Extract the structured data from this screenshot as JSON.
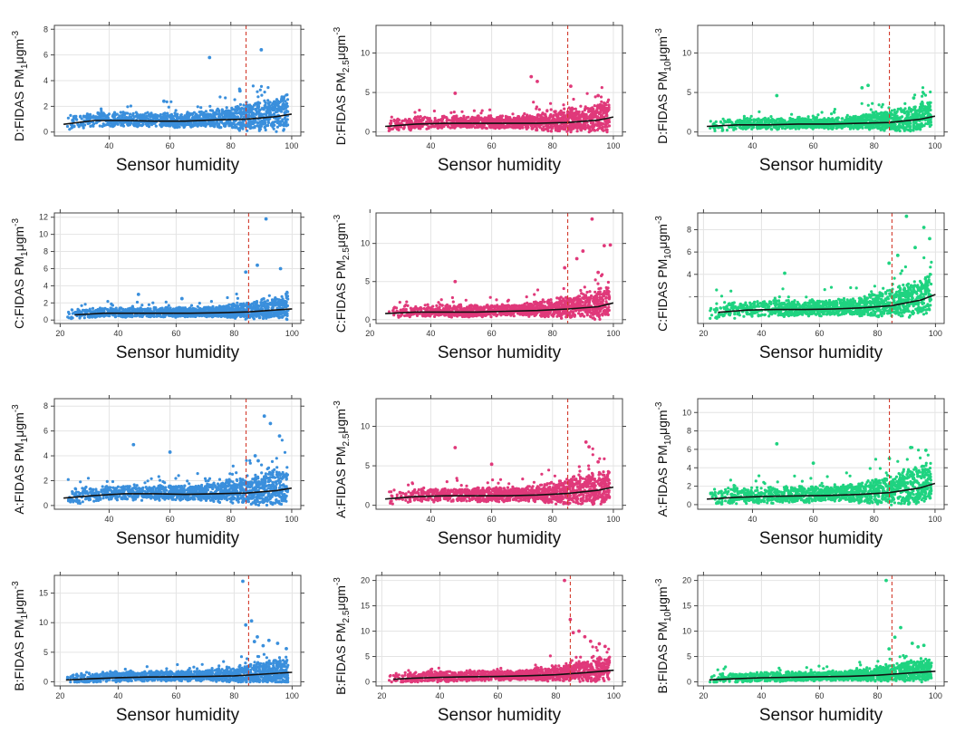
{
  "figure": {
    "rows": [
      "D",
      "C",
      "A",
      "B"
    ],
    "columns": [
      "PM1",
      "PM2.5",
      "PM10"
    ]
  },
  "chart_data": [
    {
      "type": "scatter",
      "sensor": "D",
      "pm": "PM1",
      "ylabel_prefix": "D:FIDAS PM",
      "ylabel_sub": "1",
      "ylabel_unit": "μgm",
      "ylabel_sup": "-3",
      "xlabel": "Sensor humidity",
      "color": "#3a8fdc",
      "xlim": [
        22,
        103
      ],
      "ylim": [
        -0.3,
        8.3
      ],
      "xticks": [
        40,
        60,
        80,
        100
      ],
      "yticks": [
        0,
        2,
        4,
        6,
        8
      ],
      "threshold_x": 85,
      "base_mean": 1.3,
      "spread": 1.4,
      "outliers": [
        [
          73,
          5.8
        ],
        [
          90,
          6.4
        ],
        [
          58,
          2.4
        ],
        [
          83,
          3.2
        ]
      ],
      "trend": [
        [
          25,
          0.6
        ],
        [
          35,
          0.9
        ],
        [
          45,
          0.9
        ],
        [
          55,
          0.85
        ],
        [
          65,
          0.85
        ],
        [
          75,
          0.95
        ],
        [
          85,
          1.0
        ],
        [
          95,
          1.2
        ],
        [
          100,
          1.4
        ]
      ]
    },
    {
      "type": "scatter",
      "sensor": "D",
      "pm": "PM2.5",
      "ylabel_prefix": "D:FIDAS PM",
      "ylabel_sub": "2.5",
      "ylabel_unit": "μgm",
      "ylabel_sup": "-3",
      "xlabel": "Sensor humidity",
      "color": "#e0397a",
      "xlim": [
        22,
        103
      ],
      "ylim": [
        -0.5,
        13.5
      ],
      "xticks": [
        40,
        60,
        80,
        100
      ],
      "yticks": [
        0,
        5,
        10
      ],
      "threshold_x": 85,
      "base_mean": 1.6,
      "spread": 2.0,
      "outliers": [
        [
          48,
          4.9
        ],
        [
          73,
          7.0
        ],
        [
          75,
          6.4
        ],
        [
          86,
          5.8
        ],
        [
          95,
          4.6
        ]
      ],
      "trend": [
        [
          25,
          0.7
        ],
        [
          35,
          1.0
        ],
        [
          45,
          1.1
        ],
        [
          55,
          1.1
        ],
        [
          65,
          1.1
        ],
        [
          75,
          1.1
        ],
        [
          85,
          1.2
        ],
        [
          95,
          1.5
        ],
        [
          100,
          1.9
        ]
      ]
    },
    {
      "type": "scatter",
      "sensor": "D",
      "pm": "PM10",
      "ylabel_prefix": "D:FIDAS PM",
      "ylabel_sub": "10",
      "ylabel_unit": "μgm",
      "ylabel_sup": "-3",
      "xlabel": "Sensor humidity",
      "color": "#1fd380",
      "xlim": [
        22,
        103
      ],
      "ylim": [
        -0.5,
        13.5
      ],
      "xticks": [
        40,
        60,
        80,
        100
      ],
      "yticks": [
        0,
        5,
        10
      ],
      "threshold_x": 85,
      "base_mean": 1.5,
      "spread": 1.8,
      "outliers": [
        [
          48,
          4.6
        ],
        [
          76,
          5.6
        ],
        [
          78,
          5.9
        ],
        [
          93,
          4.3
        ]
      ],
      "trend": [
        [
          25,
          0.7
        ],
        [
          35,
          0.9
        ],
        [
          45,
          0.9
        ],
        [
          55,
          1.0
        ],
        [
          65,
          1.0
        ],
        [
          75,
          1.1
        ],
        [
          85,
          1.2
        ],
        [
          95,
          1.6
        ],
        [
          100,
          2.0
        ]
      ]
    },
    {
      "type": "scatter",
      "sensor": "C",
      "pm": "PM1",
      "ylabel_prefix": "C:FIDAS PM",
      "ylabel_sub": "1",
      "ylabel_unit": "μgm",
      "ylabel_sup": "-3",
      "xlabel": "Sensor humidity",
      "color": "#3a8fdc",
      "xlim": [
        18,
        103
      ],
      "ylim": [
        -0.4,
        12.5
      ],
      "xticks": [
        20,
        40,
        60,
        80,
        100
      ],
      "yticks": [
        0,
        2,
        4,
        6,
        8,
        10,
        12
      ],
      "threshold_x": 85,
      "base_mean": 1.0,
      "spread": 1.4,
      "outliers": [
        [
          91,
          11.8
        ],
        [
          88,
          6.4
        ],
        [
          96,
          6.0
        ],
        [
          84,
          5.6
        ],
        [
          47,
          3.0
        ],
        [
          62,
          2.5
        ]
      ],
      "trend": [
        [
          25,
          0.6
        ],
        [
          35,
          0.8
        ],
        [
          45,
          0.8
        ],
        [
          55,
          0.8
        ],
        [
          65,
          0.8
        ],
        [
          75,
          0.85
        ],
        [
          85,
          0.95
        ],
        [
          95,
          1.2
        ],
        [
          100,
          1.3
        ]
      ]
    },
    {
      "type": "scatter",
      "sensor": "C",
      "pm": "PM2.5",
      "ylabel_prefix": "C:FIDAS PM",
      "ylabel_sub": "2.5",
      "ylabel_unit": "μgm",
      "ylabel_sup": "-3",
      "xlabel": "Sensor humidity",
      "color": "#e0397a",
      "xlim": [
        22,
        103
      ],
      "ylim": [
        -0.5,
        14.0
      ],
      "xticks": [
        20,
        40,
        60,
        80,
        100
      ],
      "yticks": [
        0,
        5,
        10
      ],
      "threshold_x": 85,
      "base_mean": 1.6,
      "spread": 2.0,
      "outliers": [
        [
          93,
          13.2
        ],
        [
          99,
          9.8
        ],
        [
          97,
          9.7
        ],
        [
          90,
          9.0
        ],
        [
          88,
          8.0
        ],
        [
          84,
          6.8
        ],
        [
          48,
          5.0
        ],
        [
          95,
          6.2
        ]
      ],
      "trend": [
        [
          25,
          0.8
        ],
        [
          35,
          1.0
        ],
        [
          45,
          1.0
        ],
        [
          55,
          1.0
        ],
        [
          65,
          1.1
        ],
        [
          75,
          1.2
        ],
        [
          85,
          1.4
        ],
        [
          95,
          1.7
        ],
        [
          100,
          2.2
        ]
      ]
    },
    {
      "type": "scatter",
      "sensor": "C",
      "pm": "PM10",
      "ylabel_prefix": "C:FIDAS PM",
      "ylabel_sub": "10",
      "ylabel_unit": "μgm",
      "ylabel_sup": "-3",
      "xlabel": "Sensor humidity",
      "color": "#1fd380",
      "xlim": [
        18,
        103
      ],
      "ylim": [
        -0.4,
        9.5
      ],
      "xticks": [
        20,
        40,
        60,
        80,
        100
      ],
      "yticks": [
        2,
        4,
        6,
        8
      ],
      "ytick_labels": [
        "-",
        "4",
        "6",
        "8"
      ],
      "threshold_x": 85,
      "base_mean": 1.5,
      "spread": 1.8,
      "outliers": [
        [
          90,
          9.2
        ],
        [
          96,
          8.2
        ],
        [
          98,
          7.2
        ],
        [
          93,
          6.4
        ],
        [
          87,
          5.7
        ],
        [
          48,
          4.1
        ],
        [
          84,
          5.0
        ]
      ],
      "trend": [
        [
          25,
          0.6
        ],
        [
          35,
          0.8
        ],
        [
          45,
          0.85
        ],
        [
          55,
          0.85
        ],
        [
          65,
          0.9
        ],
        [
          75,
          1.0
        ],
        [
          85,
          1.2
        ],
        [
          95,
          1.7
        ],
        [
          100,
          2.2
        ]
      ]
    },
    {
      "type": "scatter",
      "sensor": "A",
      "pm": "PM1",
      "ylabel_prefix": "A:FIDAS PM",
      "ylabel_sub": "1",
      "ylabel_unit": "μgm",
      "ylabel_sup": "-3",
      "xlabel": "Sensor humidity",
      "color": "#3a8fdc",
      "xlim": [
        22,
        103
      ],
      "ylim": [
        -0.3,
        8.6
      ],
      "xticks": [
        40,
        60,
        80,
        100
      ],
      "yticks": [
        0,
        2,
        4,
        6,
        8
      ],
      "threshold_x": 85,
      "base_mean": 1.3,
      "spread": 1.5,
      "outliers": [
        [
          91,
          7.2
        ],
        [
          93,
          6.6
        ],
        [
          96,
          5.6
        ],
        [
          48,
          4.9
        ],
        [
          60,
          4.3
        ],
        [
          88,
          4.0
        ],
        [
          89,
          3.6
        ]
      ],
      "trend": [
        [
          25,
          0.6
        ],
        [
          35,
          0.8
        ],
        [
          45,
          0.95
        ],
        [
          55,
          0.95
        ],
        [
          65,
          0.9
        ],
        [
          75,
          0.95
        ],
        [
          85,
          1.0
        ],
        [
          95,
          1.2
        ],
        [
          100,
          1.4
        ]
      ]
    },
    {
      "type": "scatter",
      "sensor": "A",
      "pm": "PM2.5",
      "ylabel_prefix": "A:FIDAS PM",
      "ylabel_sub": "2.5",
      "ylabel_unit": "μgm",
      "ylabel_sup": "-3",
      "xlabel": "Sensor humidity",
      "color": "#e0397a",
      "xlim": [
        22,
        103
      ],
      "ylim": [
        -0.5,
        13.5
      ],
      "xticks": [
        40,
        60,
        80,
        100
      ],
      "yticks": [
        0,
        5,
        10
      ],
      "threshold_x": 85,
      "base_mean": 1.8,
      "spread": 2.2,
      "outliers": [
        [
          48,
          7.3
        ],
        [
          91,
          8.0
        ],
        [
          92,
          7.4
        ],
        [
          60,
          5.2
        ],
        [
          95,
          5.5
        ]
      ],
      "trend": [
        [
          25,
          0.8
        ],
        [
          35,
          1.1
        ],
        [
          45,
          1.2
        ],
        [
          55,
          1.2
        ],
        [
          65,
          1.2
        ],
        [
          75,
          1.3
        ],
        [
          85,
          1.5
        ],
        [
          95,
          1.9
        ],
        [
          100,
          2.3
        ]
      ]
    },
    {
      "type": "scatter",
      "sensor": "A",
      "pm": "PM10",
      "ylabel_prefix": "A:FIDAS PM",
      "ylabel_sub": "10",
      "ylabel_unit": "μgm",
      "ylabel_sup": "-3",
      "xlabel": "Sensor humidity",
      "color": "#1fd380",
      "xlim": [
        22,
        103
      ],
      "ylim": [
        -0.5,
        11.5
      ],
      "xticks": [
        40,
        60,
        80,
        100
      ],
      "yticks": [
        0,
        2,
        4,
        6,
        8,
        10
      ],
      "threshold_x": 85,
      "base_mean": 1.7,
      "spread": 2.2,
      "outliers": [
        [
          48,
          6.6
        ],
        [
          60,
          4.5
        ],
        [
          92,
          6.2
        ],
        [
          97,
          5.9
        ],
        [
          85,
          5.0
        ]
      ],
      "trend": [
        [
          25,
          0.6
        ],
        [
          35,
          0.8
        ],
        [
          45,
          0.9
        ],
        [
          55,
          0.95
        ],
        [
          65,
          1.0
        ],
        [
          75,
          1.1
        ],
        [
          85,
          1.3
        ],
        [
          95,
          1.8
        ],
        [
          100,
          2.3
        ]
      ]
    },
    {
      "type": "scatter",
      "sensor": "B",
      "pm": "PM1",
      "ylabel_prefix": "B:FIDAS PM",
      "ylabel_sub": "1",
      "ylabel_unit": "μgm",
      "ylabel_sup": "-3",
      "xlabel": "Sensor humidity",
      "color": "#3a8fdc",
      "xlim": [
        18,
        103
      ],
      "ylim": [
        -0.7,
        18.0
      ],
      "xticks": [
        20,
        40,
        60,
        80,
        100
      ],
      "yticks": [
        0,
        5,
        10,
        15
      ],
      "threshold_x": 85,
      "base_mean": 1.6,
      "spread": 2.2,
      "outliers": [
        [
          83,
          17.0
        ],
        [
          86,
          10.3
        ],
        [
          84,
          9.6
        ],
        [
          88,
          7.6
        ],
        [
          92,
          7.0
        ],
        [
          95,
          6.5
        ],
        [
          98,
          5.6
        ],
        [
          90,
          6.1
        ],
        [
          87,
          6.8
        ]
      ],
      "trend": [
        [
          22,
          0.3
        ],
        [
          30,
          0.5
        ],
        [
          40,
          0.7
        ],
        [
          50,
          0.8
        ],
        [
          60,
          0.85
        ],
        [
          70,
          0.9
        ],
        [
          80,
          1.0
        ],
        [
          90,
          1.3
        ],
        [
          100,
          1.6
        ]
      ]
    },
    {
      "type": "scatter",
      "sensor": "B",
      "pm": "PM2.5",
      "ylabel_prefix": "B:FIDAS PM",
      "ylabel_sub": "2.5",
      "ylabel_unit": "μgm",
      "ylabel_sup": "-3",
      "xlabel": "Sensor humidity",
      "color": "#e0397a",
      "xlim": [
        18,
        103
      ],
      "ylim": [
        -0.8,
        21.0
      ],
      "xticks": [
        20,
        40,
        60,
        80,
        100
      ],
      "yticks": [
        0,
        5,
        10,
        15,
        20
      ],
      "threshold_x": 85,
      "base_mean": 1.8,
      "spread": 2.5,
      "outliers": [
        [
          83,
          20.0
        ],
        [
          85,
          12.3
        ],
        [
          88,
          10.0
        ],
        [
          92,
          8.0
        ],
        [
          95,
          7.5
        ],
        [
          90,
          8.9
        ],
        [
          86,
          9.7
        ],
        [
          97,
          7.0
        ]
      ],
      "trend": [
        [
          24,
          0.5
        ],
        [
          30,
          0.7
        ],
        [
          40,
          0.9
        ],
        [
          50,
          1.0
        ],
        [
          60,
          1.05
        ],
        [
          70,
          1.2
        ],
        [
          80,
          1.4
        ],
        [
          90,
          1.8
        ],
        [
          100,
          2.3
        ]
      ]
    },
    {
      "type": "scatter",
      "sensor": "B",
      "pm": "PM10",
      "ylabel_prefix": "B:FIDAS PM",
      "ylabel_sub": "10",
      "ylabel_unit": "μgm",
      "ylabel_sup": "-3",
      "xlabel": "Sensor humidity",
      "color": "#1fd380",
      "xlim": [
        18,
        103
      ],
      "ylim": [
        -0.8,
        21.0
      ],
      "xticks": [
        20,
        40,
        60,
        80,
        100
      ],
      "yticks": [
        0,
        5,
        10,
        15,
        20
      ],
      "threshold_x": 85,
      "base_mean": 1.7,
      "spread": 2.3,
      "outliers": [
        [
          83,
          20.0
        ],
        [
          88,
          10.7
        ],
        [
          86,
          8.8
        ],
        [
          92,
          7.6
        ],
        [
          96,
          7.2
        ],
        [
          84,
          6.5
        ],
        [
          94,
          6.9
        ]
      ],
      "trend": [
        [
          22,
          0.4
        ],
        [
          30,
          0.6
        ],
        [
          40,
          0.8
        ],
        [
          50,
          0.9
        ],
        [
          60,
          1.0
        ],
        [
          70,
          1.1
        ],
        [
          80,
          1.3
        ],
        [
          90,
          1.7
        ],
        [
          100,
          2.1
        ]
      ]
    }
  ]
}
